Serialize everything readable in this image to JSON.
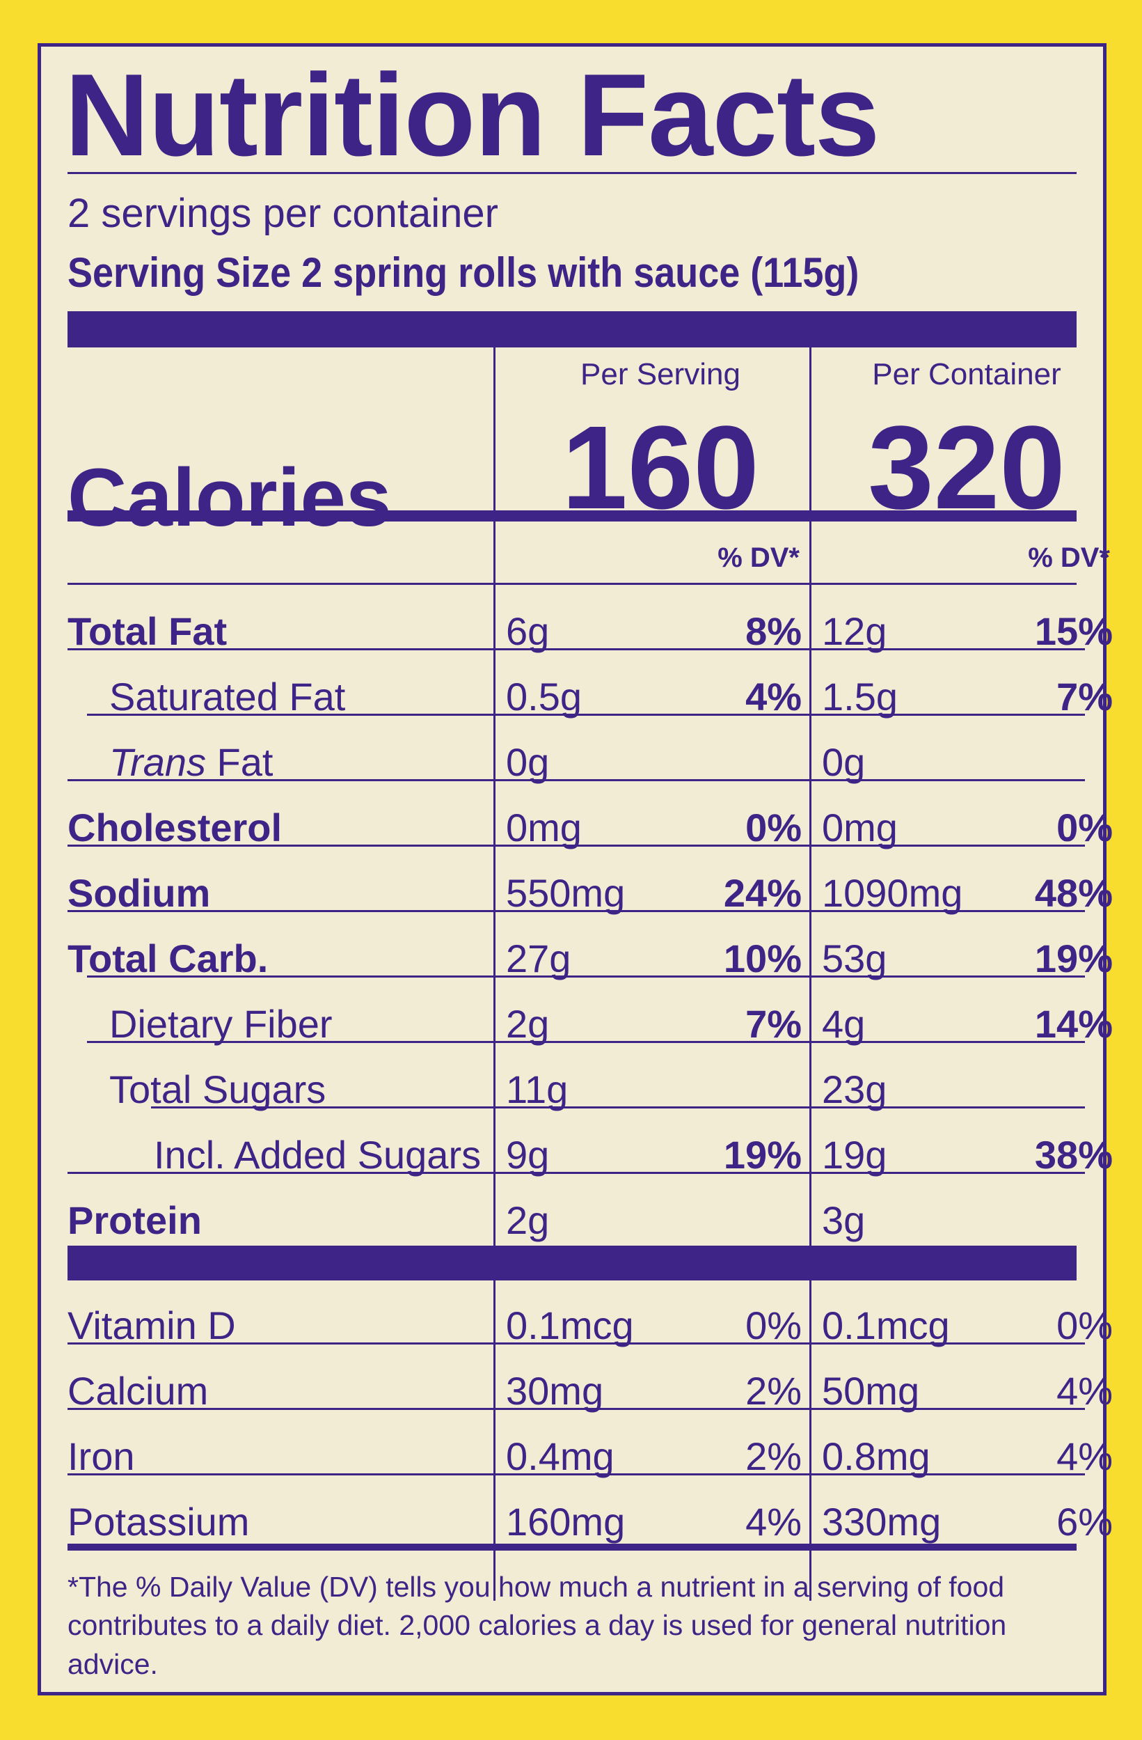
{
  "title": "Nutrition Facts",
  "servings_per_container": "2 servings per container",
  "serving_size": "Serving Size 2 spring rolls with sauce (115g)",
  "columns": {
    "per_serving": "Per Serving",
    "per_container": "Per Container",
    "dv_label": "% DV*"
  },
  "calories": {
    "label": "Calories",
    "per_serving": "160",
    "per_container": "320"
  },
  "nutrients": [
    {
      "name": "Total Fat",
      "serving_amount": "6g",
      "serving_dv": "8%",
      "container_amount": "12g",
      "container_dv": "15%"
    },
    {
      "name": "Saturated Fat",
      "serving_amount": "0.5g",
      "serving_dv": "4%",
      "container_amount": "1.5g",
      "container_dv": "7%"
    },
    {
      "name_italic": "Trans",
      "name_rest": " Fat",
      "serving_amount": "0g",
      "serving_dv": "",
      "container_amount": "0g",
      "container_dv": ""
    },
    {
      "name": "Cholesterol",
      "serving_amount": "0mg",
      "serving_dv": "0%",
      "container_amount": "0mg",
      "container_dv": "0%"
    },
    {
      "name": "Sodium",
      "serving_amount": "550mg",
      "serving_dv": "24%",
      "container_amount": "1090mg",
      "container_dv": "48%"
    },
    {
      "name": "Total Carb.",
      "serving_amount": "27g",
      "serving_dv": "10%",
      "container_amount": "53g",
      "container_dv": "19%"
    },
    {
      "name": "Dietary Fiber",
      "serving_amount": "2g",
      "serving_dv": "7%",
      "container_amount": "4g",
      "container_dv": "14%"
    },
    {
      "name": "Total Sugars",
      "serving_amount": "11g",
      "serving_dv": "",
      "container_amount": "23g",
      "container_dv": ""
    },
    {
      "name": "Incl. Added Sugars",
      "serving_amount": "9g",
      "serving_dv": "19%",
      "container_amount": "19g",
      "container_dv": "38%"
    },
    {
      "name": "Protein",
      "serving_amount": "2g",
      "serving_dv": "",
      "container_amount": "3g",
      "container_dv": ""
    }
  ],
  "vitamins": [
    {
      "name": "Vitamin D",
      "serving_amount": "0.1mcg",
      "serving_dv": "0%",
      "container_amount": "0.1mcg",
      "container_dv": "0%"
    },
    {
      "name": "Calcium",
      "serving_amount": "30mg",
      "serving_dv": "2%",
      "container_amount": "50mg",
      "container_dv": "4%"
    },
    {
      "name": "Iron",
      "serving_amount": "0.4mg",
      "serving_dv": "2%",
      "container_amount": "0.8mg",
      "container_dv": "4%"
    },
    {
      "name": "Potassium",
      "serving_amount": "160mg",
      "serving_dv": "4%",
      "container_amount": "330mg",
      "container_dv": "6%"
    }
  ],
  "footnote": "*The % Daily Value (DV) tells you how much a nutrient in a serving of food contributes to a daily diet. 2,000 calories a day is used for general nutrition advice.",
  "colors": {
    "ink": "#3f2487",
    "panel": "#f1ecd3",
    "background": "#f8dd2e"
  }
}
